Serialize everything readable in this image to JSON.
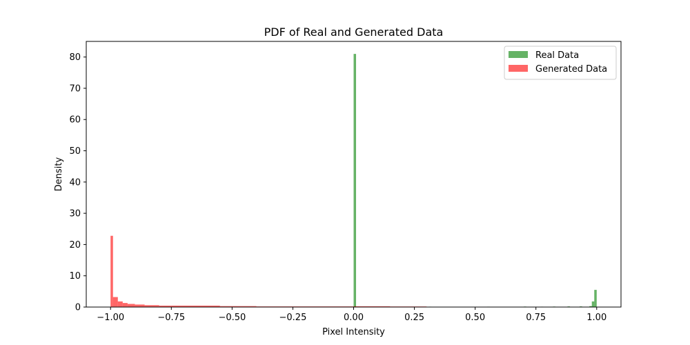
{
  "chart_data": {
    "type": "histogram",
    "title": "PDF of Real and Generated Data",
    "xlabel": "Pixel Intensity",
    "ylabel": "Density",
    "xlim": [
      -1.1,
      1.1
    ],
    "ylim": [
      0,
      85
    ],
    "xticks": [
      -1.0,
      -0.75,
      -0.5,
      -0.25,
      0.0,
      0.25,
      0.5,
      0.75,
      1.0
    ],
    "xtick_labels": [
      "−1.00",
      "−0.75",
      "−0.50",
      "−0.25",
      "0.00",
      "0.25",
      "0.50",
      "0.75",
      "1.00"
    ],
    "yticks": [
      0,
      10,
      20,
      30,
      40,
      50,
      60,
      70,
      80
    ],
    "ytick_labels": [
      "0",
      "10",
      "20",
      "30",
      "40",
      "50",
      "60",
      "70",
      "80"
    ],
    "grid": false,
    "legend": {
      "position": "top-right"
    },
    "series": [
      {
        "name": "Real Data",
        "color": "#008000",
        "opacity": 0.6,
        "bins": [
          {
            "x0": 0.0,
            "x1": 0.01,
            "value": 81.0
          },
          {
            "x0": 0.31,
            "x1": 0.32,
            "value": 0.12
          },
          {
            "x0": 0.38,
            "x1": 0.39,
            "value": 0.1
          },
          {
            "x0": 0.55,
            "x1": 0.56,
            "value": 0.12
          },
          {
            "x0": 0.63,
            "x1": 0.64,
            "value": 0.1
          },
          {
            "x0": 0.7,
            "x1": 0.71,
            "value": 0.15
          },
          {
            "x0": 0.77,
            "x1": 0.78,
            "value": 0.12
          },
          {
            "x0": 0.82,
            "x1": 0.83,
            "value": 0.15
          },
          {
            "x0": 0.88,
            "x1": 0.89,
            "value": 0.2
          },
          {
            "x0": 0.93,
            "x1": 0.94,
            "value": 0.2
          },
          {
            "x0": 0.97,
            "x1": 0.98,
            "value": 0.3
          },
          {
            "x0": 0.98,
            "x1": 0.99,
            "value": 1.8
          },
          {
            "x0": 0.99,
            "x1": 1.0,
            "value": 5.5
          }
        ]
      },
      {
        "name": "Generated Data",
        "color": "#ff0000",
        "opacity": 0.6,
        "bins": [
          {
            "x0": -1.0,
            "x1": -0.99,
            "value": 22.8
          },
          {
            "x0": -0.99,
            "x1": -0.97,
            "value": 3.2
          },
          {
            "x0": -0.97,
            "x1": -0.95,
            "value": 1.8
          },
          {
            "x0": -0.95,
            "x1": -0.93,
            "value": 1.3
          },
          {
            "x0": -0.93,
            "x1": -0.9,
            "value": 1.0
          },
          {
            "x0": -0.9,
            "x1": -0.86,
            "value": 0.8
          },
          {
            "x0": -0.86,
            "x1": -0.8,
            "value": 0.6
          },
          {
            "x0": -0.8,
            "x1": -0.55,
            "value": 0.45
          },
          {
            "x0": -0.55,
            "x1": -0.4,
            "value": 0.3
          },
          {
            "x0": -0.4,
            "x1": 0.0,
            "value": 0.2
          },
          {
            "x0": 0.0,
            "x1": 0.15,
            "value": 0.25
          },
          {
            "x0": 0.15,
            "x1": 0.3,
            "value": 0.18
          }
        ]
      }
    ]
  }
}
